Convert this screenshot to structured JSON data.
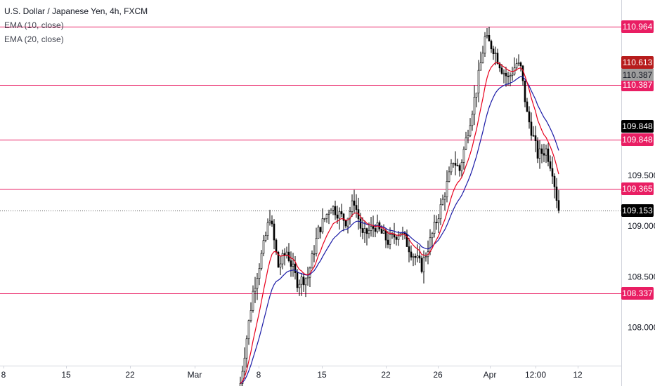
{
  "header": {
    "title": "U.S. Dollar / Japanese Yen, 4h, FXCM",
    "indicators": [
      "EMA (10, close)",
      "EMA (20, close)"
    ]
  },
  "colors": {
    "candle": "#000000",
    "ema10": "#e8001c",
    "ema20": "#1a1aa6",
    "hline": "#e91e63",
    "hline_tag": "#e91e63",
    "last_price_tag": "#000000",
    "ema10_tag": "#b71c1c",
    "ema20_tag": "#9e9e9e",
    "grid_axis": "#d1d4dc"
  },
  "chart_data": {
    "type": "candlestick",
    "symbol": "USDJPY",
    "timeframe": "4h",
    "ylim": [
      107.58,
      111.23
    ],
    "y_ticks": [
      "109.500",
      "109.000",
      "108.500",
      "108.000"
    ],
    "x_ticks": [
      "8",
      "15",
      "22",
      "Mar",
      "8",
      "15",
      "22",
      "26",
      "Apr",
      "12:00",
      "12"
    ],
    "horizontal_lines": [
      "110.964",
      "110.387",
      "109.848",
      "109.365",
      "108.337"
    ],
    "price_tags": {
      "ema10": "110.613",
      "ema20": "110.387",
      "close_level": "109.848",
      "last_price": "109.153"
    },
    "last_price_line": 109.153,
    "path_anchors": [
      [
        0,
        107.45
      ],
      [
        6,
        108.35
      ],
      [
        11,
        108.8
      ],
      [
        14,
        109.1
      ],
      [
        18,
        108.6
      ],
      [
        22,
        108.75
      ],
      [
        27,
        108.45
      ],
      [
        32,
        108.5
      ],
      [
        37,
        108.95
      ],
      [
        43,
        109.2
      ],
      [
        50,
        109.05
      ],
      [
        54,
        109.25
      ],
      [
        58,
        108.9
      ],
      [
        64,
        109.0
      ],
      [
        70,
        108.85
      ],
      [
        76,
        108.95
      ],
      [
        81,
        108.75
      ],
      [
        86,
        108.6
      ],
      [
        90,
        108.85
      ],
      [
        96,
        109.25
      ],
      [
        101,
        109.65
      ],
      [
        104,
        109.55
      ],
      [
        108,
        109.95
      ],
      [
        112,
        110.35
      ],
      [
        116,
        110.85
      ],
      [
        120,
        110.75
      ],
      [
        124,
        110.55
      ],
      [
        127,
        110.45
      ],
      [
        131,
        110.6
      ],
      [
        133,
        110.55
      ],
      [
        136,
        110.1
      ],
      [
        138,
        109.95
      ],
      [
        141,
        109.7
      ],
      [
        145,
        109.75
      ],
      [
        148,
        109.55
      ],
      [
        151,
        109.15
      ]
    ]
  }
}
